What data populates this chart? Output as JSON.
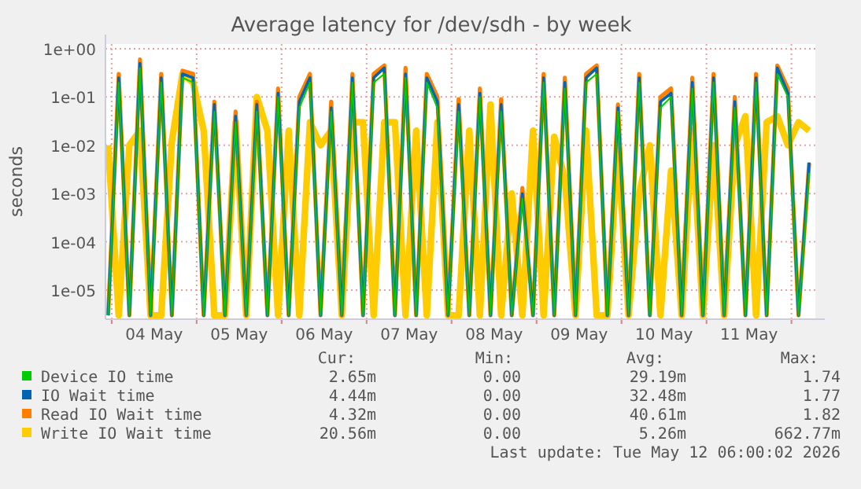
{
  "chart_data": {
    "type": "line",
    "title": "Average latency for /dev/sdh - by week",
    "ylabel": "seconds",
    "log": true,
    "grid": true,
    "legend": "bottom",
    "marker": "none",
    "line_style": "solid",
    "xlim": [
      "2026-05-03T22:15",
      "2026-05-12T06:45"
    ],
    "xticks": [
      {
        "value": "2026-05-04T00:00",
        "label": null
      },
      {
        "value": "2026-05-04T12:00",
        "label": "04 May"
      },
      {
        "value": "2026-05-05T00:00",
        "label": null
      },
      {
        "value": "2026-05-05T12:00",
        "label": "05 May"
      },
      {
        "value": "2026-05-06T00:00",
        "label": null
      },
      {
        "value": "2026-05-06T12:00",
        "label": "06 May"
      },
      {
        "value": "2026-05-07T00:00",
        "label": null
      },
      {
        "value": "2026-05-07T12:00",
        "label": "07 May"
      },
      {
        "value": "2026-05-08T00:00",
        "label": null
      },
      {
        "value": "2026-05-08T12:00",
        "label": "08 May"
      },
      {
        "value": "2026-05-09T00:00",
        "label": null
      },
      {
        "value": "2026-05-09T12:00",
        "label": "09 May"
      },
      {
        "value": "2026-05-10T00:00",
        "label": null
      },
      {
        "value": "2026-05-10T12:00",
        "label": "10 May"
      },
      {
        "value": "2026-05-11T00:00",
        "label": null
      },
      {
        "value": "2026-05-11T12:00",
        "label": "11 May"
      },
      {
        "value": "2026-05-12T00:00",
        "label": null
      }
    ],
    "ylim": [
      2.5e-06,
      1.25
    ],
    "yticks": [
      {
        "value": 1e-05,
        "label": "1e-05"
      },
      {
        "value": 0.0001,
        "label": "1e-04"
      },
      {
        "value": 0.001,
        "label": "1e-03"
      },
      {
        "value": 0.01,
        "label": "1e-02"
      },
      {
        "value": 0.1,
        "label": "1e-01"
      },
      {
        "value": 1,
        "label": "1e+00"
      }
    ],
    "x": [
      "2026-05-03T23:00",
      "2026-05-04T02:00",
      "2026-05-04T05:00",
      "2026-05-04T08:00",
      "2026-05-04T11:00",
      "2026-05-04T14:00",
      "2026-05-04T17:00",
      "2026-05-04T20:00",
      "2026-05-04T23:00",
      "2026-05-05T02:00",
      "2026-05-05T05:00",
      "2026-05-05T08:00",
      "2026-05-05T11:00",
      "2026-05-05T14:00",
      "2026-05-05T17:00",
      "2026-05-05T20:00",
      "2026-05-05T23:00",
      "2026-05-06T02:00",
      "2026-05-06T05:00",
      "2026-05-06T08:00",
      "2026-05-06T11:00",
      "2026-05-06T14:00",
      "2026-05-06T17:00",
      "2026-05-06T20:00",
      "2026-05-06T23:00",
      "2026-05-07T02:00",
      "2026-05-07T05:00",
      "2026-05-07T08:00",
      "2026-05-07T11:00",
      "2026-05-07T14:00",
      "2026-05-07T17:00",
      "2026-05-07T20:00",
      "2026-05-07T23:00",
      "2026-05-08T02:00",
      "2026-05-08T05:00",
      "2026-05-08T08:00",
      "2026-05-08T11:00",
      "2026-05-08T14:00",
      "2026-05-08T17:00",
      "2026-05-08T20:00",
      "2026-05-08T23:00",
      "2026-05-09T02:00",
      "2026-05-09T05:00",
      "2026-05-09T08:00",
      "2026-05-09T11:00",
      "2026-05-09T14:00",
      "2026-05-09T17:00",
      "2026-05-09T20:00",
      "2026-05-09T23:00",
      "2026-05-10T02:00",
      "2026-05-10T05:00",
      "2026-05-10T08:00",
      "2026-05-10T11:00",
      "2026-05-10T14:00",
      "2026-05-10T17:00",
      "2026-05-10T20:00",
      "2026-05-10T23:00",
      "2026-05-11T02:00",
      "2026-05-11T05:00",
      "2026-05-11T08:00",
      "2026-05-11T11:00",
      "2026-05-11T14:00",
      "2026-05-11T17:00",
      "2026-05-11T20:00",
      "2026-05-11T23:00",
      "2026-05-12T02:00",
      "2026-05-12T05:00"
    ],
    "series": [
      {
        "name": "Device IO time",
        "color": "#00cc00",
        "values": [
          3e-06,
          0.2,
          3e-06,
          0.4,
          3e-06,
          0.2,
          3e-06,
          0.25,
          0.2,
          3e-06,
          0.05,
          3e-06,
          0.03,
          3e-06,
          0.05,
          3e-06,
          0.1,
          3e-06,
          0.06,
          0.2,
          3e-06,
          0.05,
          3e-06,
          0.2,
          3e-06,
          0.2,
          0.3,
          3e-06,
          0.25,
          3e-06,
          0.2,
          0.06,
          3e-06,
          0.05,
          3e-06,
          0.1,
          3e-06,
          0.05,
          3e-06,
          0.0008,
          3e-06,
          0.2,
          3e-06,
          0.15,
          3e-06,
          0.2,
          0.3,
          3e-06,
          0.05,
          3e-06,
          0.2,
          3e-06,
          0.06,
          0.1,
          3e-06,
          0.15,
          3e-06,
          0.2,
          3e-06,
          0.06,
          3e-06,
          0.2,
          3e-06,
          0.3,
          0.1,
          3e-06,
          0.0027
        ]
      },
      {
        "name": "IO Wait time",
        "color": "#0066b3",
        "values": [
          3e-06,
          0.25,
          3e-06,
          0.5,
          3e-06,
          0.25,
          3e-06,
          0.3,
          0.25,
          3e-06,
          0.07,
          3e-06,
          0.04,
          3e-06,
          0.07,
          3e-06,
          0.12,
          3e-06,
          0.08,
          0.25,
          3e-06,
          0.06,
          3e-06,
          0.25,
          3e-06,
          0.25,
          0.4,
          3e-06,
          0.3,
          3e-06,
          0.25,
          0.08,
          3e-06,
          0.07,
          3e-06,
          0.12,
          3e-06,
          0.07,
          3e-06,
          0.001,
          3e-06,
          0.25,
          3e-06,
          0.2,
          3e-06,
          0.25,
          0.4,
          3e-06,
          0.06,
          3e-06,
          0.25,
          3e-06,
          0.08,
          0.12,
          3e-06,
          0.2,
          3e-06,
          0.25,
          3e-06,
          0.08,
          3e-06,
          0.25,
          3e-06,
          0.4,
          0.12,
          3e-06,
          0.0044
        ]
      },
      {
        "name": "Read IO Wait time",
        "color": "#ff8000",
        "values": [
          3e-06,
          0.3,
          3e-06,
          0.6,
          3e-06,
          0.3,
          3e-06,
          0.35,
          0.3,
          3e-06,
          0.08,
          3e-06,
          0.05,
          3e-06,
          0.08,
          3e-06,
          0.15,
          3e-06,
          0.1,
          0.3,
          3e-06,
          0.08,
          3e-06,
          0.3,
          3e-06,
          0.3,
          0.45,
          3e-06,
          0.4,
          3e-06,
          0.3,
          0.1,
          3e-06,
          0.09,
          3e-06,
          0.15,
          3e-06,
          0.09,
          3e-06,
          0.0013,
          3e-06,
          0.3,
          3e-06,
          0.25,
          3e-06,
          0.3,
          0.45,
          3e-06,
          0.07,
          3e-06,
          0.3,
          3e-06,
          0.1,
          0.15,
          3e-06,
          0.25,
          3e-06,
          0.3,
          3e-06,
          0.1,
          3e-06,
          0.3,
          3e-06,
          0.45,
          0.15,
          3e-06,
          0.0043
        ]
      },
      {
        "name": "Write IO Wait time",
        "color": "#ffcc00",
        "values": [
          0.01,
          3e-06,
          0.01,
          0.02,
          3e-06,
          3e-06,
          0.012,
          0.3,
          0.2,
          0.02,
          3e-06,
          3e-06,
          0.03,
          3e-06,
          0.1,
          0.02,
          3e-06,
          0.02,
          3e-06,
          0.03,
          0.01,
          0.02,
          3e-06,
          0.03,
          0.03,
          3e-06,
          0.03,
          0.03,
          3e-06,
          0.02,
          3e-06,
          0.03,
          3e-06,
          3e-06,
          0.02,
          3e-06,
          0.07,
          3e-06,
          0.001,
          3e-06,
          0.02,
          3e-06,
          0.015,
          0.002,
          3e-06,
          0.02,
          3e-06,
          3e-06,
          0.01,
          3e-06,
          0.001,
          0.01,
          3e-06,
          0.003,
          3e-06,
          0.02,
          3e-06,
          0.01,
          3e-06,
          0.01,
          0.04,
          3e-06,
          0.03,
          0.04,
          0.01,
          0.03,
          0.02
        ]
      }
    ],
    "annotations": [
      "Cur:",
      "Min:",
      "Avg:",
      "Max:",
      "2.65m",
      "0.00",
      "29.19m",
      "1.74",
      "4.44m",
      "0.00",
      "32.48m",
      "1.77",
      "4.32m",
      "0.00",
      "40.61m",
      "1.82",
      "20.56m",
      "0.00",
      "5.26m",
      "662.77m",
      "Last update: Tue May 12 06:00:02 2026"
    ]
  }
}
